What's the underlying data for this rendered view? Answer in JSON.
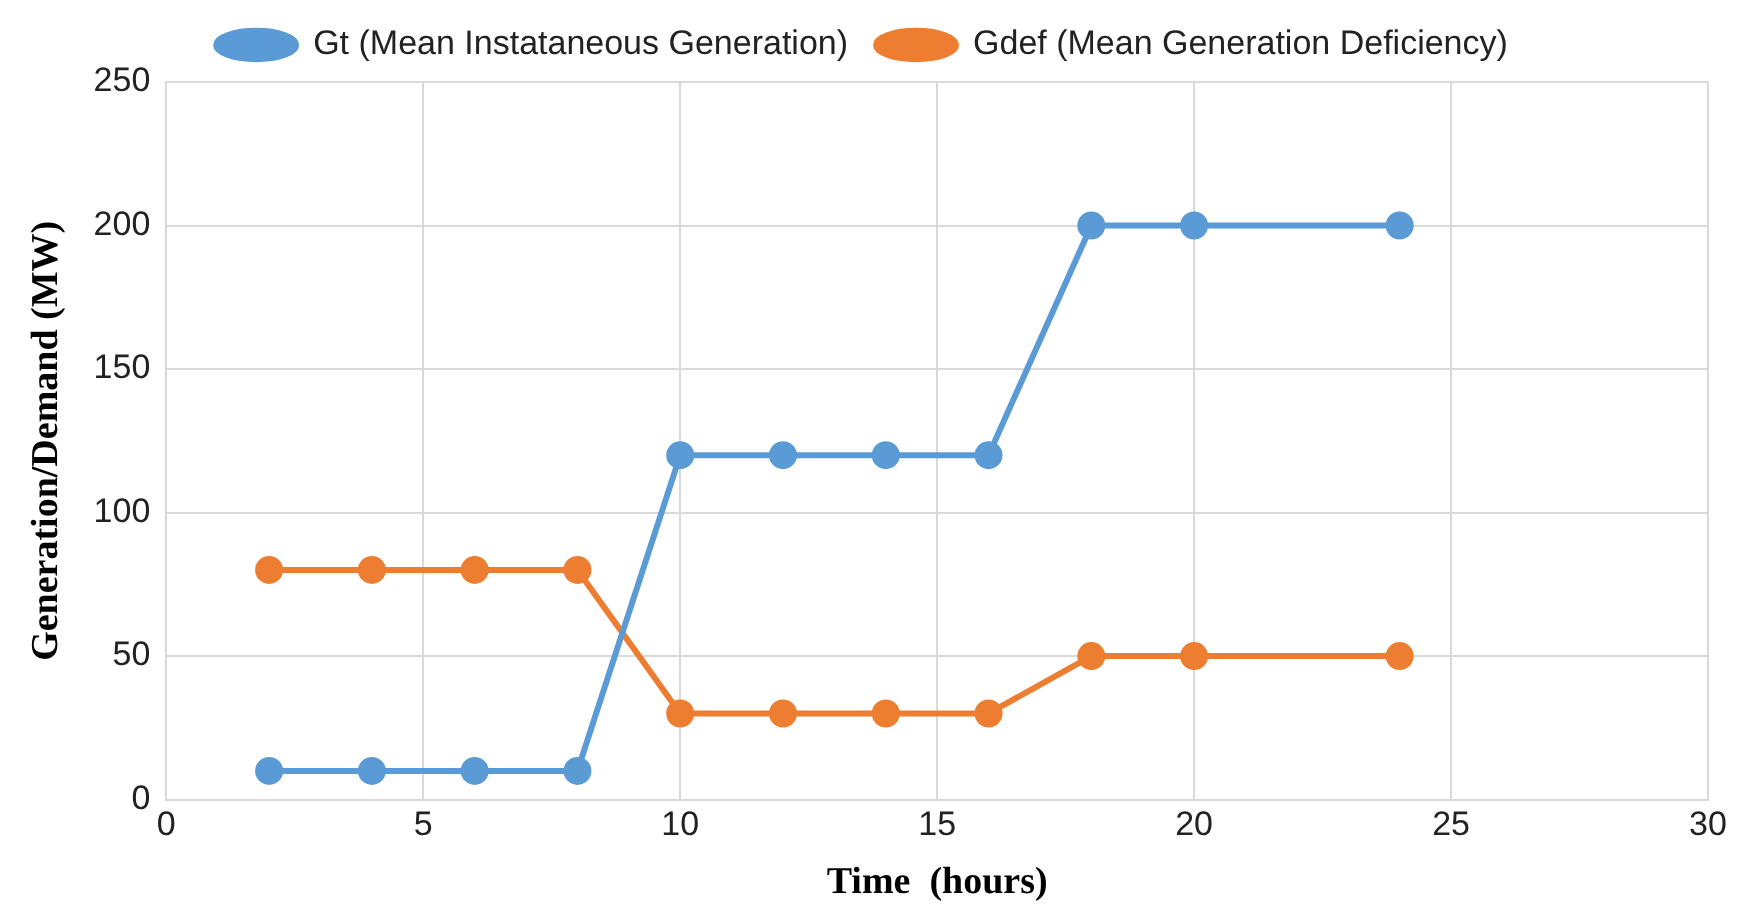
{
  "chart_data": {
    "type": "line",
    "xlabel": "Time  (hours)",
    "ylabel": "Generation/Demand (MW)",
    "x": [
      2,
      4,
      6,
      8,
      10,
      12,
      14,
      16,
      18,
      20,
      24
    ],
    "series": [
      {
        "name": "Gt (Mean Instataneous Generation)",
        "color": "#5b9bd5",
        "values": [
          10,
          10,
          10,
          10,
          120,
          120,
          120,
          120,
          200,
          200,
          200
        ]
      },
      {
        "name": "Gdef (Mean Generation Deficiency)",
        "color": "#ed7d31",
        "values": [
          80,
          80,
          80,
          80,
          30,
          30,
          30,
          30,
          50,
          50,
          50
        ]
      }
    ],
    "xlim": [
      0,
      30
    ],
    "xticks": [
      0,
      5,
      10,
      15,
      20,
      25,
      30
    ],
    "ylim": [
      0,
      250
    ],
    "yticks": [
      0,
      50,
      100,
      150,
      200,
      250
    ],
    "grid": true,
    "legend": "top",
    "marker": "circle",
    "line_style": "solid"
  }
}
